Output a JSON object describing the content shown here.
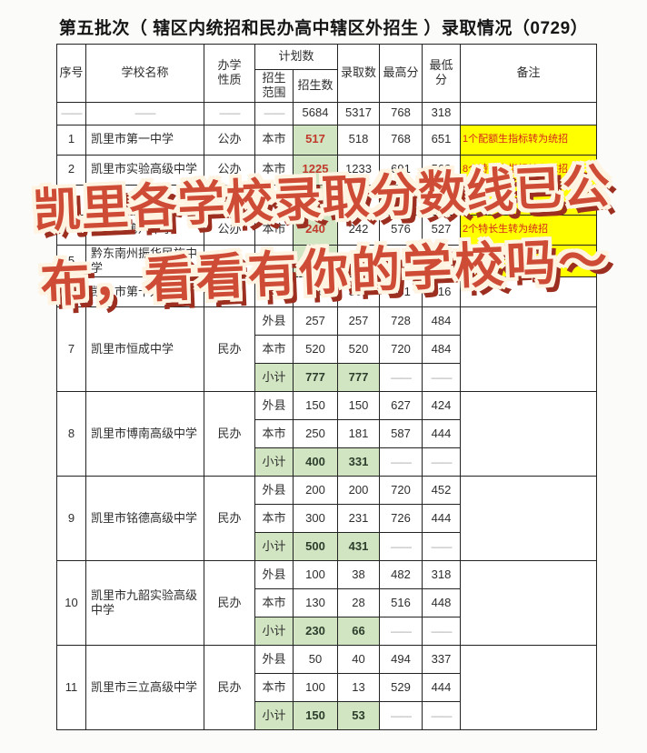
{
  "title": "第五批次（ 辖区内统招和民办高中辖区外招生 ）录取情况（0729）",
  "watermark": {
    "line1": "凯里各学校录取分数线已公",
    "line2": "布，看看有你的学校吗～"
  },
  "colors": {
    "highlight_green": "#d2e5c2",
    "highlight_yellow": "#ffff00",
    "highlight_red_text": "#c0392b",
    "watermark_fill": "#ce4b36",
    "watermark_outline": "#fff3e2"
  },
  "table": {
    "headers": {
      "index": "序号",
      "school": "学校名称",
      "type": "办学\n性质",
      "plan_group": "计划数",
      "scope": "招生\n范围",
      "plan_count": "招生数",
      "admitted": "录取数",
      "max": "最高分",
      "min": "最低分",
      "remark": "备注"
    },
    "summary_row": {
      "index": "——",
      "school": "——",
      "type": "——",
      "scope": "——",
      "plan": "5684",
      "admitted": "5317",
      "max": "768",
      "min": "318",
      "remark": ""
    },
    "rows": [
      {
        "index": "1",
        "school": "凯里市第一中学",
        "type": "公办",
        "subrows": [
          {
            "scope": "本市",
            "plan": "517",
            "hl": true,
            "admitted": "518",
            "max": "768",
            "min": "651"
          }
        ],
        "remark": "1个配额生指标转为统招",
        "remark_hl": true
      },
      {
        "index": "2",
        "school": "凯里市实验高级中学",
        "type": "公办",
        "subrows": [
          {
            "scope": "本市",
            "plan": "1225",
            "hl": true,
            "admitted": "1233",
            "max": "691",
            "min": "568"
          }
        ],
        "remark": "8个特长生指标转为统招",
        "remark_hl": true
      },
      {
        "index": "3",
        "school": "",
        "type": "",
        "subrows": [
          {
            "scope": "",
            "plan": "",
            "hl": true,
            "admitted": "",
            "max": "",
            "min": ""
          }
        ],
        "remark": "",
        "remark_hl": true
      },
      {
        "index": "4",
        "school": "凯里市第八中学",
        "type": "公办",
        "subrows": [
          {
            "scope": "本市",
            "plan": "240",
            "hl": true,
            "admitted": "242",
            "max": "576",
            "min": "527"
          }
        ],
        "remark": "2个特长生转为统招",
        "remark_hl": true
      },
      {
        "index": "5",
        "school": "黔东南州振华民族中学",
        "type": "",
        "subrows": [
          {
            "scope": "",
            "plan": "",
            "hl": true,
            "admitted": "",
            "max": "",
            "min": ""
          }
        ],
        "remark": "",
        "remark_hl": true
      },
      {
        "index": "6",
        "school": "凯里市第十九中学",
        "type": "公办",
        "subrows": [
          {
            "scope": "本市",
            "plan": "300",
            "admitted": "300",
            "max": "661",
            "min": "516"
          }
        ],
        "remark": ""
      },
      {
        "index": "7",
        "school": "凯里市恒成中学",
        "type": "民办",
        "subrows": [
          {
            "scope": "外县",
            "plan": "257",
            "admitted": "257",
            "max": "728",
            "min": "484"
          },
          {
            "scope": "本市",
            "plan": "520",
            "admitted": "520",
            "max": "720",
            "min": "484"
          },
          {
            "scope": "小计",
            "st": true,
            "plan": "777",
            "admitted": "777",
            "max": "——",
            "min": "——"
          }
        ],
        "remark": ""
      },
      {
        "index": "8",
        "school": "凯里市博南高级中学",
        "type": "民办",
        "subrows": [
          {
            "scope": "外县",
            "plan": "150",
            "admitted": "150",
            "max": "627",
            "min": "424"
          },
          {
            "scope": "本市",
            "plan": "250",
            "admitted": "181",
            "max": "587",
            "min": "444"
          },
          {
            "scope": "小计",
            "st": true,
            "plan": "400",
            "admitted": "331",
            "max": "——",
            "min": "——"
          }
        ],
        "remark": ""
      },
      {
        "index": "9",
        "school": "凯里市铭德高级中学",
        "type": "民办",
        "subrows": [
          {
            "scope": "外县",
            "plan": "200",
            "admitted": "200",
            "max": "720",
            "min": "452"
          },
          {
            "scope": "本市",
            "plan": "300",
            "admitted": "231",
            "max": "726",
            "min": "444"
          },
          {
            "scope": "小计",
            "st": true,
            "plan": "500",
            "admitted": "431",
            "max": "——",
            "min": "——"
          }
        ],
        "remark": ""
      },
      {
        "index": "10",
        "school": "凯里市九韶实验高级中学",
        "type": "民办",
        "subrows": [
          {
            "scope": "外县",
            "plan": "100",
            "admitted": "38",
            "max": "482",
            "min": "318"
          },
          {
            "scope": "本市",
            "plan": "130",
            "admitted": "28",
            "max": "516",
            "min": "448"
          },
          {
            "scope": "小计",
            "st": true,
            "plan": "230",
            "admitted": "66",
            "max": "——",
            "min": "——"
          }
        ],
        "remark": ""
      },
      {
        "index": "11",
        "school": "凯里市三立高级中学",
        "type": "民办",
        "subrows": [
          {
            "scope": "外县",
            "plan": "50",
            "admitted": "40",
            "max": "494",
            "min": "337"
          },
          {
            "scope": "本市",
            "plan": "100",
            "admitted": "13",
            "max": "529",
            "min": "444"
          },
          {
            "scope": "小计",
            "st": true,
            "plan": "150",
            "admitted": "53",
            "max": "——",
            "min": "——"
          }
        ],
        "remark": ""
      }
    ]
  }
}
